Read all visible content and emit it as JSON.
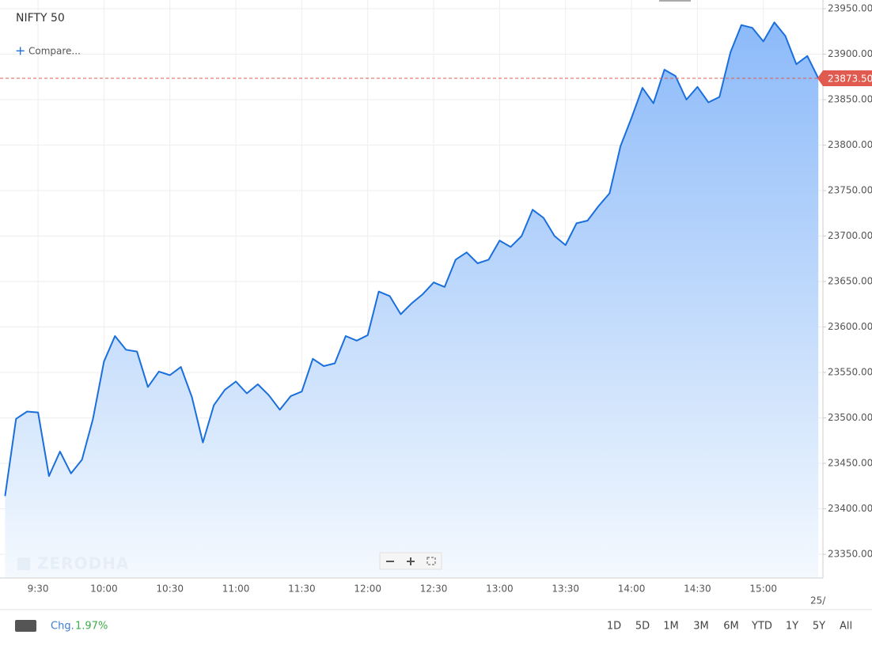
{
  "chart_data": {
    "type": "area",
    "title": "NIFTY 50",
    "compare": "Compare...",
    "watermark": "ZERODHA",
    "date_label": "25/",
    "color": "#1a6fdc",
    "x": [
      555,
      560,
      565,
      570,
      575,
      580,
      585,
      590,
      595,
      600,
      605,
      610,
      615,
      620,
      625,
      630,
      635,
      640,
      645,
      650,
      655,
      660,
      665,
      670,
      675,
      680,
      685,
      690,
      695,
      700,
      705,
      710,
      715,
      720,
      725,
      730,
      735,
      740,
      745,
      750,
      755,
      760,
      765,
      770,
      775,
      780,
      785,
      790,
      795,
      800,
      805,
      810,
      815,
      820,
      825,
      830,
      835,
      840,
      845,
      850,
      855,
      860,
      865,
      870,
      875,
      880,
      885,
      890,
      895,
      900,
      905,
      910,
      915,
      920,
      925
    ],
    "values": [
      23414,
      23499,
      23507,
      23506,
      23436,
      23463,
      23439,
      23454,
      23499,
      23562,
      23590,
      23575,
      23573,
      23534,
      23551,
      23547,
      23556,
      23523,
      23473,
      23514,
      23531,
      23540,
      23527,
      23537,
      23525,
      23509,
      23524,
      23529,
      23565,
      23557,
      23560,
      23590,
      23585,
      23591,
      23639,
      23634,
      23614,
      23626,
      23636,
      23649,
      23644,
      23674,
      23682,
      23670,
      23674,
      23695,
      23688,
      23700,
      23729,
      23720,
      23700,
      23690,
      23714,
      23717,
      23733,
      23747,
      23799,
      23830,
      23863,
      23846,
      23883,
      23876,
      23850,
      23864,
      23847,
      23853,
      23902,
      23932,
      23929,
      23914,
      23935,
      23920,
      23889,
      23898,
      23873.5
    ],
    "xlim": [
      552.7,
      927.1
    ],
    "xticks": [
      {
        "value": 570,
        "label": "9:30"
      },
      {
        "value": 600,
        "label": "10:00"
      },
      {
        "value": 630,
        "label": "10:30"
      },
      {
        "value": 660,
        "label": "11:00"
      },
      {
        "value": 690,
        "label": "11:30"
      },
      {
        "value": 720,
        "label": "12:00"
      },
      {
        "value": 750,
        "label": "12:30"
      },
      {
        "value": 780,
        "label": "13:00"
      },
      {
        "value": 810,
        "label": "13:30"
      },
      {
        "value": 840,
        "label": "14:00"
      },
      {
        "value": 870,
        "label": "14:30"
      },
      {
        "value": 900,
        "label": "15:00"
      }
    ],
    "ylim": [
      23324.8,
      23959.6
    ],
    "yticks": [
      {
        "value": 23350,
        "label": "23350.00"
      },
      {
        "value": 23400,
        "label": "23400.00"
      },
      {
        "value": 23450,
        "label": "23450.00"
      },
      {
        "value": 23500,
        "label": "23500.00"
      },
      {
        "value": 23550,
        "label": "23550.00"
      },
      {
        "value": 23600,
        "label": "23600.00"
      },
      {
        "value": 23650,
        "label": "23650.00"
      },
      {
        "value": 23700,
        "label": "23700.00"
      },
      {
        "value": 23750,
        "label": "23750.00"
      },
      {
        "value": 23800,
        "label": "23800.00"
      },
      {
        "value": 23850,
        "label": "23850.00"
      },
      {
        "value": 23900,
        "label": "23900.00"
      },
      {
        "value": 23950,
        "label": "23950.00"
      }
    ],
    "last_price": {
      "value": 23873.5,
      "label": "23873.50"
    },
    "grid": true,
    "change_label": "Chg.",
    "change": "1.97%",
    "ranges": [
      "1D",
      "5D",
      "1M",
      "3M",
      "6M",
      "YTD",
      "1Y",
      "5Y",
      "All"
    ]
  }
}
